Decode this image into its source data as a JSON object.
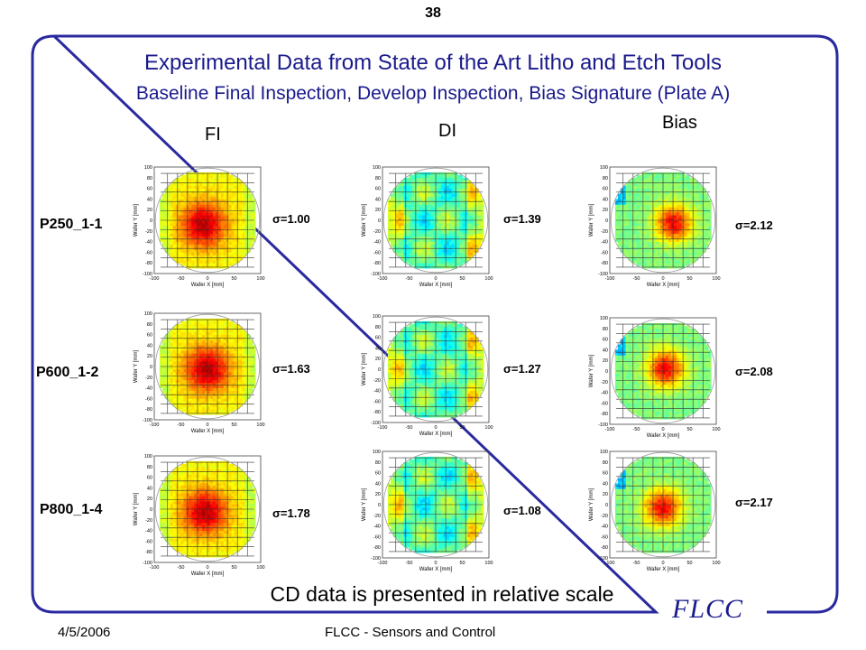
{
  "page_number": "38",
  "title": "Experimental Data from State of the Art Litho and Etch Tools",
  "subtitle": "Baseline  Final Inspection, Develop Inspection, Bias Signature (Plate A)",
  "columns": [
    "FI",
    "DI",
    "Bias"
  ],
  "rows": [
    {
      "label": "P250_1-1",
      "sigmas": [
        "σ=1.00",
        "σ=1.39",
        "σ=2.12"
      ]
    },
    {
      "label": "P600_1-2",
      "sigmas": [
        "σ=1.63",
        "σ=1.27",
        "σ=2.08"
      ]
    },
    {
      "label": "P800_1-4",
      "sigmas": [
        "σ=1.78",
        "σ=1.08",
        "σ=2.17"
      ]
    }
  ],
  "map_axes": {
    "xlabel": "Wafer X [mm]",
    "ylabel": "Wafer Y [mm]",
    "x_ticks": [
      "-100",
      "-50",
      "0",
      "50",
      "100"
    ],
    "y_ticks": [
      "100",
      "80",
      "60",
      "40",
      "20",
      "0",
      "-20",
      "-40",
      "-60",
      "-80",
      "-100"
    ]
  },
  "footnote": "CD data is presented in relative scale",
  "logo": "FLCC",
  "footer": {
    "date": "4/5/2006",
    "center": "FLCC - Sensors and Control"
  },
  "colors": {
    "frame": "#2a2aa0",
    "title": "#1a1a8c"
  }
}
